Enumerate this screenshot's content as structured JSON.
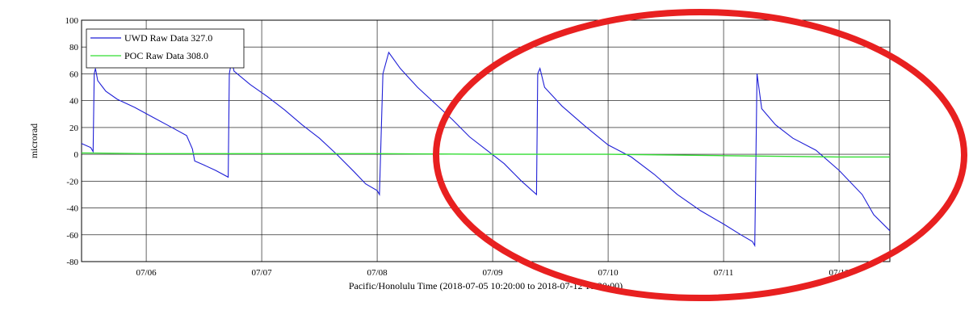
{
  "chart_data": {
    "type": "line",
    "xlabel": "Pacific/Honolulu Time (2018-07-05 10:20:00 to 2018-07-12 10:20:00)",
    "ylabel": "microrad",
    "xlim": [
      0.44,
      7.44
    ],
    "ylim": [
      -80,
      100
    ],
    "x_tick_values": [
      1,
      2,
      3,
      4,
      5,
      6,
      7
    ],
    "x_tick_labels": [
      "07/06",
      "07/07",
      "07/08",
      "07/09",
      "07/10",
      "07/11",
      "07/12"
    ],
    "y_ticks": [
      -80,
      -60,
      -40,
      -20,
      0,
      20,
      40,
      60,
      80,
      100
    ],
    "grid": true,
    "legend_position": "top-left",
    "series": [
      {
        "name": "UWD Raw Data 327.0",
        "color": "#1f1fd6",
        "x": [
          0.44,
          0.52,
          0.54,
          0.55,
          0.56,
          0.58,
          0.65,
          0.75,
          0.9,
          1.05,
          1.2,
          1.35,
          1.4,
          1.42,
          1.5,
          1.6,
          1.71,
          1.72,
          1.74,
          1.76,
          1.9,
          2.05,
          2.2,
          2.35,
          2.5,
          2.65,
          2.8,
          2.9,
          3.0,
          3.02,
          3.05,
          3.1,
          3.2,
          3.35,
          3.5,
          3.65,
          3.8,
          3.95,
          4.1,
          4.25,
          4.38,
          4.39,
          4.41,
          4.45,
          4.6,
          4.8,
          5.0,
          5.2,
          5.4,
          5.6,
          5.8,
          6.0,
          6.15,
          6.25,
          6.27,
          6.29,
          6.33,
          6.45,
          6.6,
          6.8,
          7.0,
          7.2,
          7.3,
          7.44
        ],
        "y": [
          8,
          5,
          2,
          60,
          64,
          55,
          47,
          41,
          35,
          28,
          21,
          14,
          4,
          -5,
          -8,
          -12,
          -17,
          60,
          70,
          62,
          52,
          43,
          33,
          22,
          12,
          0,
          -13,
          -22,
          -27,
          -30,
          60,
          76,
          64,
          50,
          38,
          26,
          13,
          3,
          -7,
          -20,
          -30,
          60,
          64,
          50,
          36,
          21,
          7,
          -2,
          -15,
          -30,
          -42,
          -52,
          -60,
          -65,
          -68,
          60,
          34,
          22,
          12,
          3,
          -12,
          -30,
          -45,
          -57
        ]
      },
      {
        "name": "POC Raw Data 308.0",
        "color": "#33dd33",
        "x": [
          0.44,
          1.0,
          2.0,
          3.0,
          4.0,
          5.0,
          6.0,
          7.0,
          7.44
        ],
        "y": [
          1,
          0.5,
          0.5,
          0.5,
          0,
          0,
          -1,
          -2,
          -2
        ]
      }
    ],
    "annotations": [
      {
        "type": "ellipse",
        "color": "#e82020",
        "region": "right half highlight"
      }
    ]
  }
}
